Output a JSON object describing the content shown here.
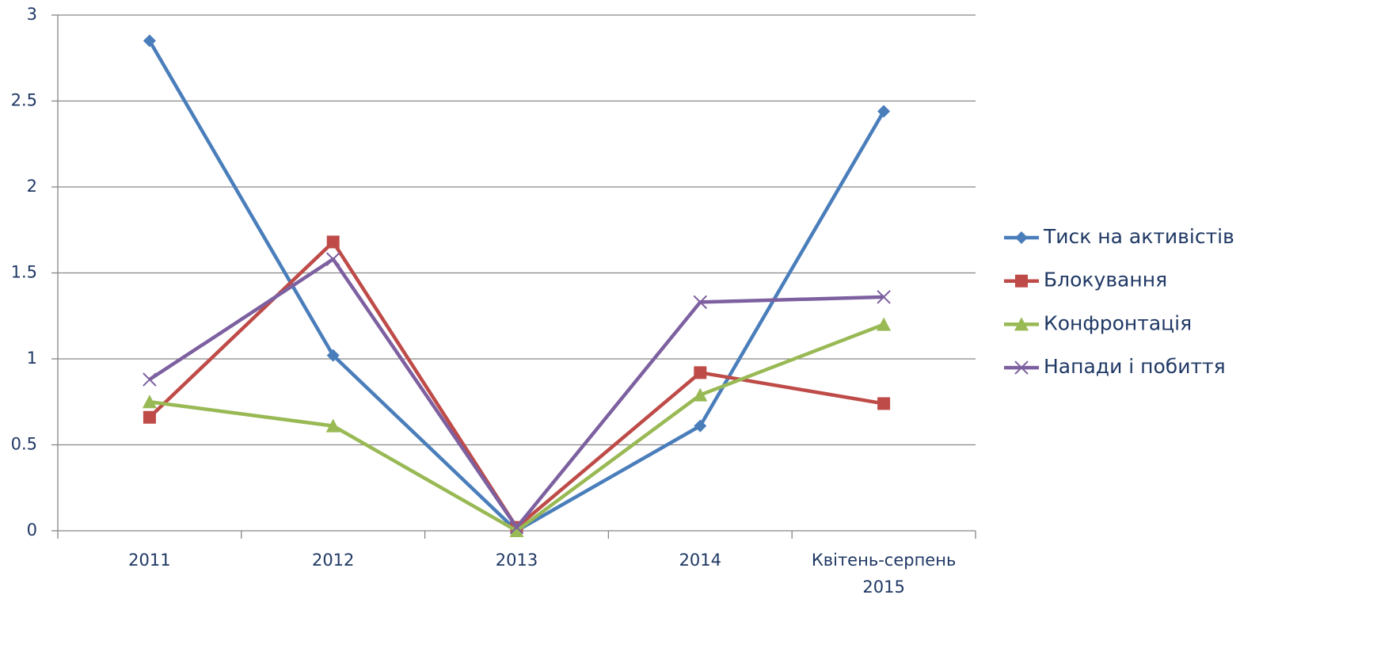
{
  "chart_data": {
    "type": "line",
    "categories": [
      "2011",
      "2012",
      "2013",
      "2014",
      "Квітень-серпень 2015"
    ],
    "series": [
      {
        "name": "Тиск на активістів",
        "color": "#4a7ebb",
        "marker": "diamond",
        "values": [
          2.85,
          1.02,
          0,
          0.61,
          2.44
        ]
      },
      {
        "name": "Блокування",
        "color": "#be4b48",
        "marker": "square",
        "values": [
          0.66,
          1.68,
          0.02,
          0.92,
          0.74
        ]
      },
      {
        "name": "Конфронтація",
        "color": "#98b954",
        "marker": "triangle",
        "values": [
          0.75,
          0.61,
          0,
          0.79,
          1.2
        ]
      },
      {
        "name": "Напади і побиття",
        "color": "#7d60a0",
        "marker": "x",
        "values": [
          0.88,
          1.58,
          0.02,
          1.33,
          1.36
        ]
      }
    ],
    "ylim": [
      0,
      3
    ],
    "yticks": [
      0,
      0.5,
      1,
      1.5,
      2,
      2.5,
      3
    ],
    "grid": true,
    "legend": "right"
  }
}
